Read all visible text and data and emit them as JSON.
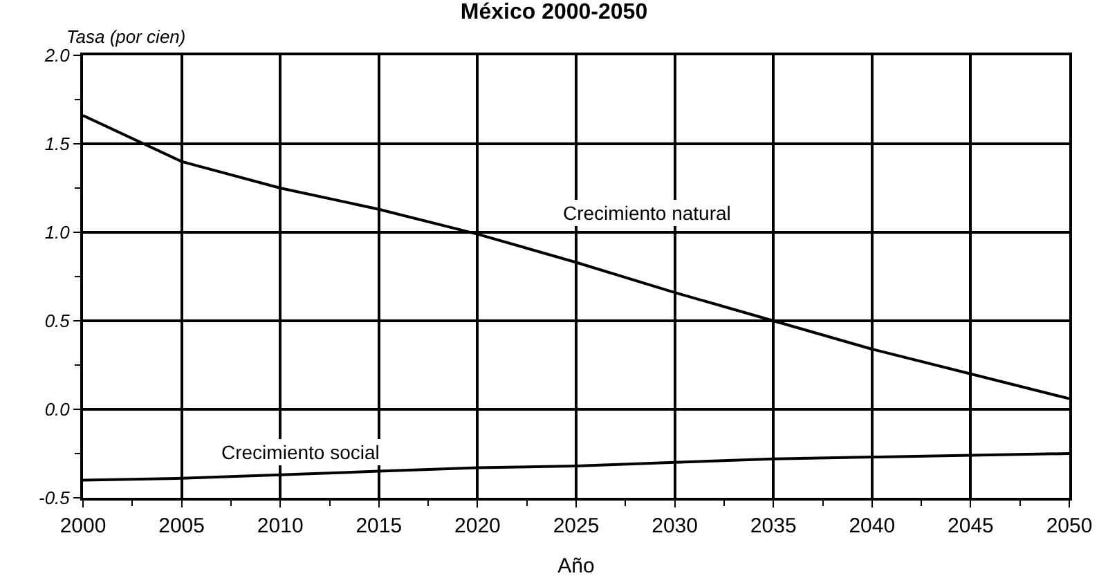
{
  "chart_data": {
    "type": "line",
    "title": "México 2000-2050",
    "xlabel": "Año",
    "ylabel": "Tasa (por cien)",
    "x": [
      2000,
      2005,
      2010,
      2015,
      2020,
      2025,
      2030,
      2035,
      2040,
      2045,
      2050
    ],
    "series": [
      {
        "name": "Crecimiento natural",
        "color": "#000000",
        "values": [
          1.66,
          1.4,
          1.25,
          1.13,
          0.99,
          0.83,
          0.66,
          0.5,
          0.34,
          0.2,
          0.06
        ]
      },
      {
        "name": "Crecimiento social",
        "color": "#000000",
        "values": [
          -0.4,
          -0.39,
          -0.37,
          -0.35,
          -0.33,
          -0.32,
          -0.3,
          -0.28,
          -0.27,
          -0.26,
          -0.25
        ]
      }
    ],
    "xlim": [
      2000,
      2050
    ],
    "xticks": [
      2000,
      2005,
      2010,
      2015,
      2020,
      2025,
      2030,
      2035,
      2040,
      2045,
      2050
    ],
    "ylim": [
      -0.5,
      2.0
    ],
    "yticks": [
      {
        "value": -0.5,
        "label": "-0.5"
      },
      {
        "value": 0,
        "label": "0.0"
      },
      {
        "value": 0.5,
        "label": "0.5"
      },
      {
        "value": 1,
        "label": "1.0"
      },
      {
        "value": 1.5,
        "label": "1.5"
      },
      {
        "value": 2,
        "label": "2.0"
      }
    ],
    "grid": true,
    "legend": false,
    "marker": "none",
    "line_style": "solid"
  }
}
